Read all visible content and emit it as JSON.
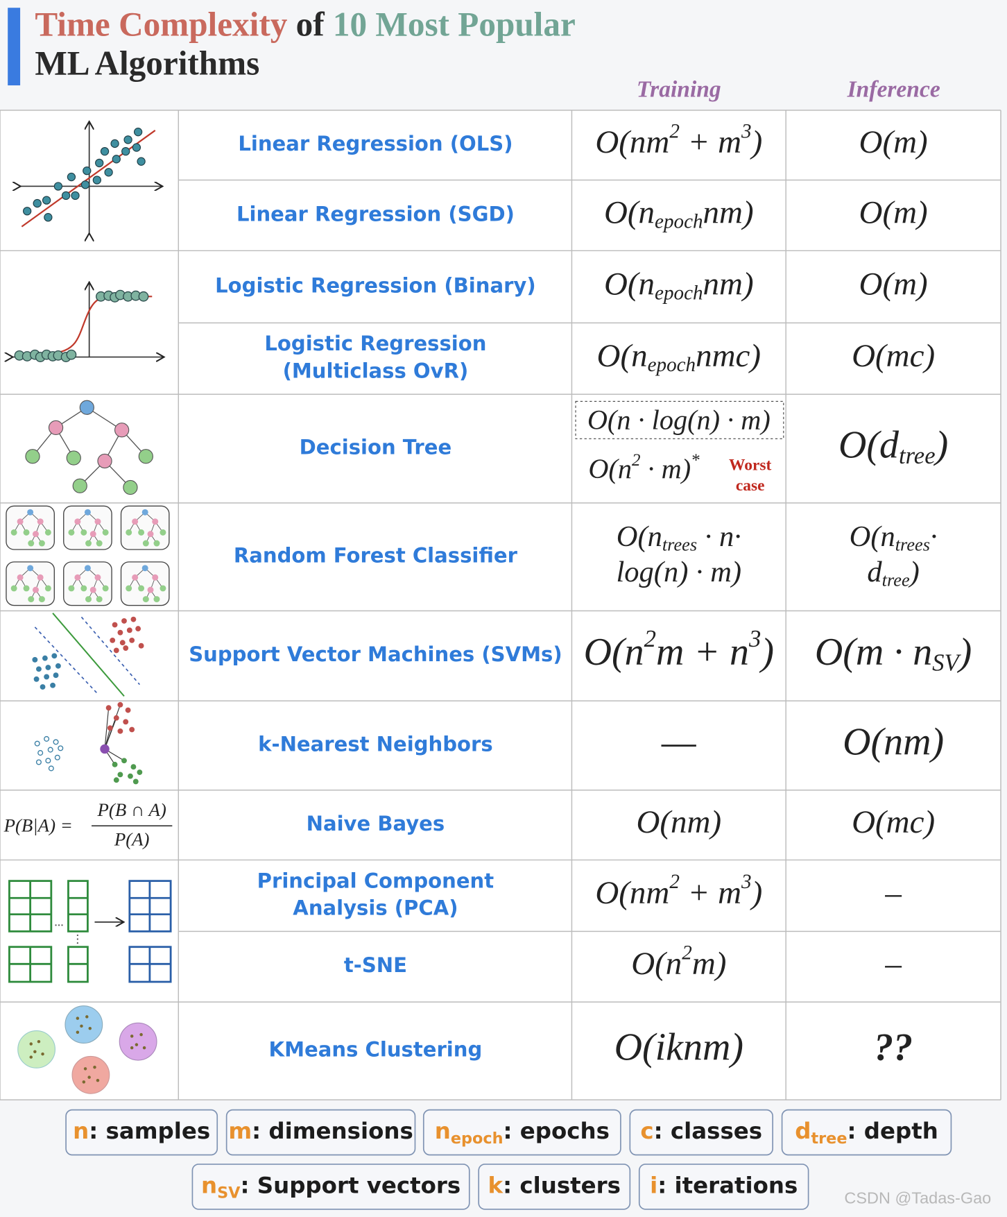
{
  "title": {
    "parts": [
      {
        "text": "Time Complexity",
        "color": "#c9695d"
      },
      {
        "text": " of ",
        "color": "#2a2a2a"
      },
      {
        "text": "10 Most Popular",
        "color": "#72a595"
      }
    ],
    "line2": "ML Algorithms"
  },
  "headers": {
    "training": "Training",
    "inference": "Inference"
  },
  "rows": [
    {
      "name": [
        "Linear Regression (OLS)"
      ],
      "training": [
        [
          {
            "t": "O(nm"
          },
          {
            "sup": "2"
          },
          {
            "t": " + m"
          },
          {
            "sup": "3"
          },
          {
            "t": ")"
          }
        ]
      ],
      "inference": [
        [
          {
            "t": "O(m)"
          }
        ]
      ]
    },
    {
      "name": [
        "Linear Regression (SGD)"
      ],
      "training": [
        [
          {
            "t": "O(n"
          },
          {
            "sub": "epoch"
          },
          {
            "t": "nm)"
          }
        ]
      ],
      "inference": [
        [
          {
            "t": "O(m)"
          }
        ]
      ]
    },
    {
      "name": [
        "Logistic Regression (Binary)"
      ],
      "training": [
        [
          {
            "t": "O(n"
          },
          {
            "sub": "epoch"
          },
          {
            "t": "nm)"
          }
        ]
      ],
      "inference": [
        [
          {
            "t": "O(m)"
          }
        ]
      ]
    },
    {
      "name": [
        "Logistic Regression",
        "(Multiclass OvR)"
      ],
      "training": [
        [
          {
            "t": "O(n"
          },
          {
            "sub": "epoch"
          },
          {
            "t": "nmc)"
          }
        ]
      ],
      "inference": [
        [
          {
            "t": "O(mc)"
          }
        ]
      ]
    },
    {
      "name": [
        "Decision Tree"
      ],
      "training": [
        [
          {
            "t": "O(n · log(n) · m)"
          }
        ],
        [
          {
            "t": "O(n"
          },
          {
            "sup": "2"
          },
          {
            "t": " · m)"
          },
          {
            "sup": "*"
          }
        ]
      ],
      "training_note": [
        "Worst",
        "case"
      ],
      "inference": [
        [
          {
            "t": "O(d"
          },
          {
            "sub": "tree"
          },
          {
            "t": ")"
          }
        ]
      ]
    },
    {
      "name": [
        "Random Forest Classifier"
      ],
      "training": [
        [
          {
            "t": "O(n"
          },
          {
            "sub": "trees"
          },
          {
            "t": " · n·"
          }
        ],
        [
          {
            "t": "log(n) · m)"
          }
        ]
      ],
      "inference": [
        [
          {
            "t": "O(n"
          },
          {
            "sub": "trees"
          },
          {
            "t": "·"
          }
        ],
        [
          {
            "t": "d"
          },
          {
            "sub": "tree"
          },
          {
            "t": ")"
          }
        ]
      ]
    },
    {
      "name": [
        "Support Vector Machines (SVMs)"
      ],
      "training": [
        [
          {
            "t": "O(n"
          },
          {
            "sup": "2"
          },
          {
            "t": "m + n"
          },
          {
            "sup": "3"
          },
          {
            "t": ")"
          }
        ]
      ],
      "inference": [
        [
          {
            "t": "O(m · n"
          },
          {
            "sub": "SV"
          },
          {
            "t": ")"
          }
        ]
      ]
    },
    {
      "name": [
        "k-Nearest Neighbors"
      ],
      "training": [
        [
          {
            "t": "—"
          }
        ]
      ],
      "inference": [
        [
          {
            "t": "O(nm)"
          }
        ]
      ]
    },
    {
      "name": [
        "Naive Bayes"
      ],
      "training": [
        [
          {
            "t": "O(nm)"
          }
        ]
      ],
      "inference": [
        [
          {
            "t": "O(mc)"
          }
        ]
      ]
    },
    {
      "name": [
        "Principal Component",
        "Analysis (PCA)"
      ],
      "training": [
        [
          {
            "t": "O(nm"
          },
          {
            "sup": "2"
          },
          {
            "t": " + m"
          },
          {
            "sup": "3"
          },
          {
            "t": ")"
          }
        ]
      ],
      "inference": [
        [
          {
            "t": "–"
          }
        ]
      ]
    },
    {
      "name": [
        "t-SNE"
      ],
      "training": [
        [
          {
            "t": "O(n"
          },
          {
            "sup": "2"
          },
          {
            "t": "m)"
          }
        ]
      ],
      "inference": [
        [
          {
            "t": "–"
          }
        ]
      ]
    },
    {
      "name": [
        "KMeans Clustering"
      ],
      "training": [
        [
          {
            "t": "O(iknm)"
          }
        ]
      ],
      "inference": [
        [
          {
            "t": "??"
          }
        ]
      ],
      "inference_color": "#d9453a"
    }
  ],
  "bayes": {
    "lhs": "P(B|A) =",
    "num": "P(B ∩ A)",
    "den": "P(A)"
  },
  "legend": [
    [
      {
        "key": "n",
        "text": ": samples"
      },
      {
        "key": "m",
        "text": ": dimensions"
      },
      {
        "key": "n",
        "sub": "epoch",
        "text": ": epochs"
      },
      {
        "key": "c",
        "text": ": classes"
      },
      {
        "key": "d",
        "sub": "tree",
        "text": ": depth"
      }
    ],
    [
      {
        "key": "n",
        "sub": "SV",
        "text": ": Support vectors"
      },
      {
        "key": "k",
        "text": ": clusters"
      },
      {
        "key": "i",
        "text": ": iterations"
      }
    ]
  ],
  "watermark": "CSDN @Tadas-Gao"
}
